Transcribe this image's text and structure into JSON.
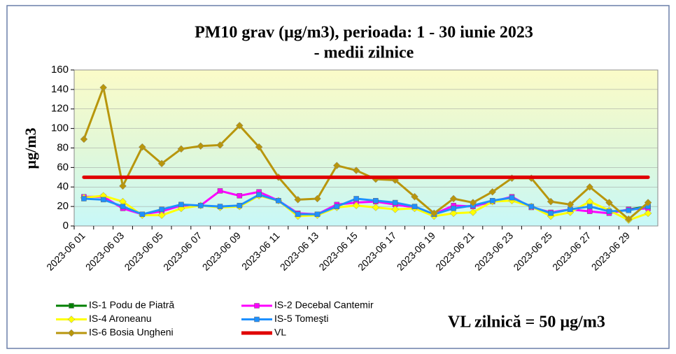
{
  "chart_data": {
    "type": "line",
    "title": "PM10 grav (µg/m3), perioada: 1 - 30 iunie 2023",
    "subtitle": "- medii zilnice",
    "y_label": "µg/m3",
    "annotation": "VL zilnică = 50 µg/m3",
    "categories": [
      "2023-06 01",
      null,
      "2023-06 03",
      null,
      "2023-06 05",
      null,
      "2023-06 07",
      null,
      "2023-06 09",
      null,
      "2023-06 11",
      null,
      "2023-06 13",
      null,
      "2023-06 15",
      null,
      "2023-06 17",
      null,
      "2023-06 19",
      null,
      "2023-06 21",
      null,
      "2023-06 23",
      null,
      "2023-06 25",
      null,
      "2023-06 27",
      null,
      "2023-06 29",
      null
    ],
    "ylim": [
      0,
      160
    ],
    "yticks": [
      0,
      20,
      40,
      60,
      80,
      100,
      120,
      140,
      160
    ],
    "series": [
      {
        "name": "IS-1 Podu de Piatră",
        "color": "#008000",
        "marker": "square",
        "values": [
          null,
          null,
          null,
          null,
          null,
          null,
          null,
          null,
          null,
          null,
          null,
          null,
          null,
          null,
          null,
          null,
          null,
          null,
          null,
          null,
          null,
          null,
          null,
          null,
          null,
          null,
          null,
          null,
          17,
          20
        ]
      },
      {
        "name": "IS-2 Decebal Cantemir",
        "color": "#ff00ff",
        "marker": "square",
        "values": [
          30,
          30,
          18,
          12,
          15,
          21,
          21,
          36,
          31,
          35,
          26,
          13,
          12,
          22,
          24,
          25,
          22,
          19,
          12,
          21,
          20,
          25,
          30,
          19,
          14,
          17,
          15,
          13,
          17,
          18
        ]
      },
      {
        "name": "IS-4 Aroneanu",
        "color": "#ffff00",
        "marker": "diamond",
        "values": [
          29,
          31,
          25,
          11,
          11,
          18,
          21,
          19,
          20,
          31,
          26,
          10,
          11,
          19,
          21,
          19,
          17,
          18,
          10,
          13,
          14,
          25,
          26,
          20,
          10,
          14,
          25,
          16,
          6,
          13
        ]
      },
      {
        "name": "IS-5 Tomeşti",
        "color": "#1e90ff",
        "marker": "square",
        "values": [
          28,
          27,
          20,
          12,
          17,
          22,
          21,
          20,
          21,
          32,
          26,
          12,
          12,
          20,
          28,
          26,
          24,
          20,
          12,
          18,
          21,
          26,
          29,
          20,
          13,
          17,
          20,
          15,
          16,
          20
        ]
      },
      {
        "name": "IS-6 Bosia Ungheni",
        "color": "#b8960c",
        "marker": "diamond",
        "values": [
          89,
          142,
          41,
          81,
          64,
          79,
          82,
          83,
          103,
          81,
          50,
          27,
          28,
          62,
          57,
          48,
          47,
          30,
          13,
          28,
          24,
          35,
          49,
          49,
          25,
          22,
          40,
          24,
          7,
          24
        ]
      },
      {
        "name": "VL",
        "color": "#e00000",
        "marker": "none",
        "values": [
          50,
          50,
          50,
          50,
          50,
          50,
          50,
          50,
          50,
          50,
          50,
          50,
          50,
          50,
          50,
          50,
          50,
          50,
          50,
          50,
          50,
          50,
          50,
          50,
          50,
          50,
          50,
          50,
          50,
          50
        ]
      }
    ],
    "grid": true
  }
}
